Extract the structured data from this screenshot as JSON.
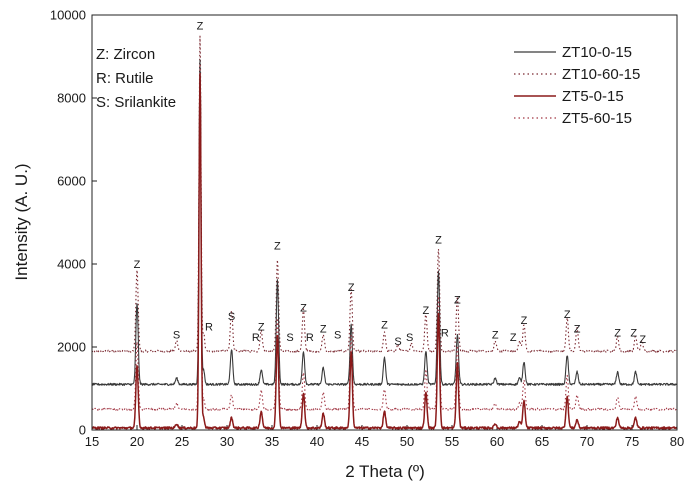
{
  "chart_data": {
    "type": "line",
    "xlabel": "2 Theta (º)",
    "ylabel": "Intensity (A. U.)",
    "xlim": [
      15,
      80
    ],
    "ylim": [
      0,
      10000
    ],
    "x_ticks": [
      15,
      20,
      25,
      30,
      35,
      40,
      45,
      50,
      55,
      60,
      65,
      70,
      75,
      80
    ],
    "y_ticks": [
      0,
      2000,
      4000,
      6000,
      8000,
      10000
    ],
    "grid": false,
    "legend_position": "top-right",
    "annotations": [
      "Z: Zircon",
      "R: Rutile",
      "S: Srilankite"
    ],
    "series": [
      {
        "name": "ZT10-0-15",
        "color": "#3a3a3a",
        "style": "solid",
        "baseline": 1100,
        "peaks": [
          [
            20.0,
            3050
          ],
          [
            24.4,
            1250
          ],
          [
            27.0,
            8900
          ],
          [
            27.4,
            1450
          ],
          [
            30.5,
            1950
          ],
          [
            33.8,
            1450
          ],
          [
            35.6,
            3600
          ],
          [
            38.5,
            1900
          ],
          [
            40.7,
            1500
          ],
          [
            43.8,
            2550
          ],
          [
            47.5,
            1750
          ],
          [
            52.1,
            1900
          ],
          [
            53.5,
            3850
          ],
          [
            55.6,
            2300
          ],
          [
            59.8,
            1250
          ],
          [
            62.5,
            1250
          ],
          [
            63.0,
            1650
          ],
          [
            67.8,
            1800
          ],
          [
            68.9,
            1400
          ],
          [
            73.4,
            1400
          ],
          [
            75.4,
            1400
          ]
        ]
      },
      {
        "name": "ZT10-60-15",
        "color": "#7a2830",
        "style": "dotted",
        "baseline": 1900,
        "peaks": [
          [
            20.0,
            3850
          ],
          [
            24.4,
            2150
          ],
          [
            27.0,
            9500
          ],
          [
            27.4,
            2350
          ],
          [
            30.5,
            2900
          ],
          [
            33.8,
            2400
          ],
          [
            35.6,
            4100
          ],
          [
            38.5,
            2900
          ],
          [
            40.7,
            2300
          ],
          [
            43.8,
            3400
          ],
          [
            47.5,
            2350
          ],
          [
            49.0,
            2050
          ],
          [
            50.5,
            2100
          ],
          [
            52.1,
            2800
          ],
          [
            53.5,
            4350
          ],
          [
            55.6,
            3200
          ],
          [
            59.8,
            2150
          ],
          [
            62.5,
            2150
          ],
          [
            63.0,
            2550
          ],
          [
            67.8,
            2700
          ],
          [
            68.9,
            2450
          ],
          [
            73.4,
            2250
          ],
          [
            75.4,
            2250
          ],
          [
            76.1,
            2150
          ]
        ]
      },
      {
        "name": "ZT5-0-15",
        "color": "#8b1a1a",
        "style": "solid",
        "baseline": 50,
        "peaks": [
          [
            20.0,
            1550
          ],
          [
            24.4,
            150
          ],
          [
            27.0,
            8600
          ],
          [
            27.4,
            300
          ],
          [
            30.5,
            300
          ],
          [
            33.8,
            450
          ],
          [
            35.6,
            2300
          ],
          [
            38.5,
            900
          ],
          [
            40.7,
            400
          ],
          [
            43.8,
            1900
          ],
          [
            47.5,
            450
          ],
          [
            52.1,
            900
          ],
          [
            53.5,
            2800
          ],
          [
            55.6,
            1600
          ],
          [
            59.8,
            150
          ],
          [
            62.5,
            200
          ],
          [
            63.0,
            700
          ],
          [
            67.8,
            800
          ],
          [
            68.9,
            250
          ],
          [
            73.4,
            300
          ],
          [
            75.4,
            300
          ]
        ]
      },
      {
        "name": "ZT5-60-15",
        "color": "#a23845",
        "style": "dotted",
        "baseline": 500,
        "peaks": [
          [
            20.0,
            2100
          ],
          [
            24.4,
            650
          ],
          [
            27.0,
            8800
          ],
          [
            27.4,
            750
          ],
          [
            30.5,
            850
          ],
          [
            33.8,
            950
          ],
          [
            35.6,
            2700
          ],
          [
            38.5,
            1400
          ],
          [
            40.7,
            900
          ],
          [
            43.8,
            2300
          ],
          [
            47.5,
            1000
          ],
          [
            52.1,
            1450
          ],
          [
            53.5,
            3200
          ],
          [
            55.6,
            2050
          ],
          [
            59.8,
            650
          ],
          [
            62.5,
            650
          ],
          [
            63.0,
            1200
          ],
          [
            67.8,
            1300
          ],
          [
            68.9,
            850
          ],
          [
            73.4,
            800
          ],
          [
            75.4,
            800
          ]
        ]
      }
    ],
    "peak_labels": [
      {
        "text": "Z",
        "x": 20.0,
        "y": 3900
      },
      {
        "text": "S",
        "x": 24.4,
        "y": 2200
      },
      {
        "text": "Z",
        "x": 27.0,
        "y": 9650
      },
      {
        "text": "R",
        "x": 28.0,
        "y": 2400
      },
      {
        "text": "S",
        "x": 30.5,
        "y": 2650
      },
      {
        "text": "R",
        "x": 33.2,
        "y": 2150
      },
      {
        "text": "Z",
        "x": 33.8,
        "y": 2400
      },
      {
        "text": "Z",
        "x": 35.6,
        "y": 4350
      },
      {
        "text": "S",
        "x": 37.0,
        "y": 2150
      },
      {
        "text": "Z",
        "x": 38.5,
        "y": 2850
      },
      {
        "text": "R",
        "x": 39.2,
        "y": 2150
      },
      {
        "text": "Z",
        "x": 40.7,
        "y": 2350
      },
      {
        "text": "S",
        "x": 42.3,
        "y": 2200
      },
      {
        "text": "Z",
        "x": 43.8,
        "y": 3350
      },
      {
        "text": "Z",
        "x": 47.5,
        "y": 2450
      },
      {
        "text": "S",
        "x": 49.0,
        "y": 2050
      },
      {
        "text": "S",
        "x": 50.3,
        "y": 2150
      },
      {
        "text": "Z",
        "x": 52.1,
        "y": 2800
      },
      {
        "text": "Z",
        "x": 53.5,
        "y": 4500
      },
      {
        "text": "R",
        "x": 54.2,
        "y": 2250
      },
      {
        "text": "Z",
        "x": 55.6,
        "y": 3050
      },
      {
        "text": "Z",
        "x": 59.8,
        "y": 2200
      },
      {
        "text": "Z",
        "x": 61.8,
        "y": 2150
      },
      {
        "text": "Z",
        "x": 63.0,
        "y": 2550
      },
      {
        "text": "Z",
        "x": 67.8,
        "y": 2700
      },
      {
        "text": "Z",
        "x": 68.9,
        "y": 2350
      },
      {
        "text": "Z",
        "x": 73.4,
        "y": 2250
      },
      {
        "text": "Z",
        "x": 75.2,
        "y": 2250
      },
      {
        "text": "Z",
        "x": 76.2,
        "y": 2100
      }
    ]
  }
}
